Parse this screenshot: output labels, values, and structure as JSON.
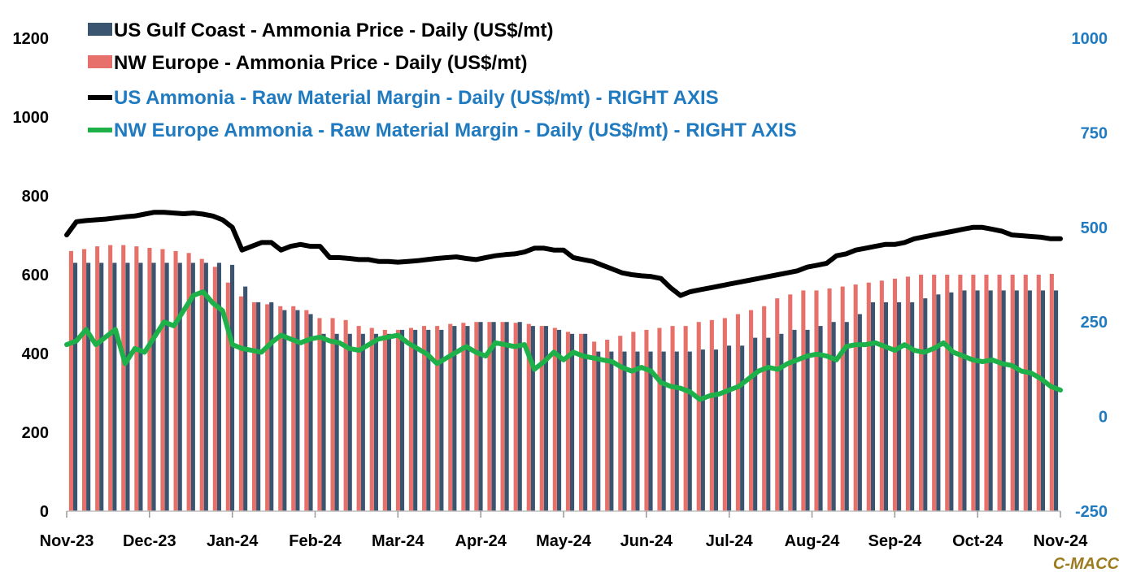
{
  "colors": {
    "us_bar": "#3B5570",
    "eu_bar": "#E8706A",
    "us_margin": "#000000",
    "eu_margin": "#1EB14A",
    "right_axis": "#1F7AC0",
    "watermark": "#9C7A1E"
  },
  "chart_data": {
    "type": "bar",
    "title": "",
    "x_tick_labels": [
      "Nov-23",
      "Dec-23",
      "Jan-24",
      "Feb-24",
      "Mar-24",
      "Apr-24",
      "May-24",
      "Jun-24",
      "Jul-24",
      "Aug-24",
      "Sep-24",
      "Oct-24",
      "Nov-24"
    ],
    "left_axis": {
      "ylim": [
        0,
        1200
      ],
      "ticks": [
        "0",
        "200",
        "400",
        "600",
        "800",
        "1000",
        "1200"
      ]
    },
    "right_axis": {
      "ylim": [
        -250,
        1000
      ],
      "ticks": [
        "-250",
        "0",
        "250",
        "500",
        "750",
        "1000"
      ]
    },
    "grid": false,
    "legend_position": "top-left",
    "weekly_dates": [
      "2023-11-01",
      "2023-11-08",
      "2023-11-15",
      "2023-11-22",
      "2023-11-29",
      "2023-12-06",
      "2023-12-13",
      "2023-12-20",
      "2023-12-27",
      "2024-01-03",
      "2024-01-10",
      "2024-01-17",
      "2024-01-24",
      "2024-01-31",
      "2024-02-07",
      "2024-02-14",
      "2024-02-21",
      "2024-02-28",
      "2024-03-06",
      "2024-03-13",
      "2024-03-20",
      "2024-03-27",
      "2024-04-03",
      "2024-04-10",
      "2024-04-17",
      "2024-04-24",
      "2024-05-01",
      "2024-05-08",
      "2024-05-15",
      "2024-05-22",
      "2024-05-29",
      "2024-06-05",
      "2024-06-12",
      "2024-06-19",
      "2024-06-26",
      "2024-07-03",
      "2024-07-10",
      "2024-07-17",
      "2024-07-24",
      "2024-07-31",
      "2024-08-07",
      "2024-08-14",
      "2024-08-21",
      "2024-08-28",
      "2024-09-04",
      "2024-09-11",
      "2024-09-18",
      "2024-09-25",
      "2024-10-02",
      "2024-10-09",
      "2024-10-16",
      "2024-10-23",
      "2024-10-30",
      "2024-11-06",
      "2024-11-13",
      "2024-11-20",
      "2024-11-27",
      "2024-11-30"
    ],
    "series": [
      {
        "name": "US Gulf Coast - Ammonia Price - Daily (US$/mt)",
        "axis": "left",
        "values": [
          630,
          630,
          630,
          630,
          630,
          630,
          630,
          630,
          630,
          630,
          630,
          630,
          625,
          570,
          530,
          530,
          510,
          510,
          500,
          450,
          450,
          450,
          450,
          450,
          450,
          460,
          460,
          460,
          460,
          470,
          470,
          480,
          480,
          480,
          480,
          470,
          470,
          460,
          450,
          450,
          405,
          405,
          405,
          405,
          405,
          405,
          405,
          405,
          410,
          410,
          420,
          420,
          440,
          440,
          450,
          460,
          460,
          470,
          480,
          480,
          500,
          530,
          530,
          530,
          530,
          540,
          550,
          555,
          560,
          560,
          560,
          560,
          560,
          560,
          560,
          560
        ]
      },
      {
        "name": "NW Europe - Ammonia Price - Daily (US$/mt)",
        "axis": "left",
        "values": [
          660,
          665,
          672,
          675,
          675,
          672,
          668,
          665,
          660,
          655,
          640,
          620,
          580,
          545,
          530,
          525,
          520,
          520,
          510,
          490,
          490,
          485,
          470,
          465,
          460,
          460,
          465,
          470,
          470,
          475,
          478,
          480,
          480,
          480,
          478,
          475,
          470,
          465,
          455,
          450,
          430,
          435,
          445,
          455,
          460,
          465,
          470,
          470,
          480,
          485,
          490,
          500,
          510,
          520,
          540,
          550,
          560,
          560,
          565,
          570,
          575,
          580,
          585,
          590,
          595,
          600,
          600,
          600,
          600,
          600,
          600,
          600,
          600,
          600,
          600,
          602
        ]
      },
      {
        "name": "US Ammonia - Raw Material Margin - Daily (US$/mt) - RIGHT AXIS",
        "axis": "right",
        "values": [
          480,
          515,
          518,
          520,
          522,
          525,
          528,
          530,
          535,
          540,
          540,
          538,
          536,
          538,
          535,
          530,
          520,
          500,
          440,
          450,
          460,
          460,
          440,
          450,
          455,
          450,
          450,
          420,
          420,
          418,
          415,
          415,
          410,
          410,
          408,
          410,
          412,
          415,
          418,
          420,
          422,
          418,
          415,
          420,
          425,
          428,
          430,
          435,
          445,
          445,
          440,
          440,
          420,
          415,
          410,
          400,
          390,
          380,
          375,
          372,
          370,
          365,
          340,
          320,
          330,
          335,
          340,
          345,
          350,
          355,
          360,
          365,
          370,
          375,
          380,
          385,
          395,
          400,
          405,
          425,
          430,
          440,
          445,
          450,
          455,
          455,
          460,
          470,
          475,
          480,
          485,
          490,
          495,
          500,
          500,
          495,
          490,
          480,
          478,
          476,
          474,
          470,
          470
        ]
      },
      {
        "name": "NW Europe Ammonia - Raw Material Margin - Daily (US$/mt) - RIGHT AXIS",
        "axis": "right",
        "values": [
          190,
          200,
          230,
          190,
          210,
          230,
          140,
          180,
          170,
          210,
          250,
          240,
          280,
          320,
          330,
          300,
          280,
          190,
          180,
          175,
          170,
          195,
          215,
          205,
          195,
          205,
          210,
          200,
          195,
          180,
          175,
          190,
          205,
          210,
          215,
          195,
          180,
          165,
          140,
          155,
          170,
          185,
          170,
          160,
          195,
          190,
          185,
          190,
          125,
          145,
          170,
          150,
          170,
          160,
          155,
          150,
          145,
          130,
          120,
          130,
          120,
          90,
          80,
          75,
          65,
          45,
          55,
          60,
          70,
          80,
          100,
          120,
          130,
          125,
          140,
          150,
          160,
          165,
          160,
          150,
          185,
          190,
          190,
          195,
          185,
          175,
          190,
          175,
          170,
          180,
          195,
          170,
          160,
          150,
          145,
          150,
          140,
          135,
          120,
          115,
          100,
          80,
          70
        ]
      }
    ]
  },
  "legend": {
    "items": [
      {
        "label": "US Gulf Coast - Ammonia Price - Daily (US$/mt)",
        "text_color": "#000000"
      },
      {
        "label": "NW Europe - Ammonia Price - Daily (US$/mt)",
        "text_color": "#000000"
      },
      {
        "label": "US Ammonia - Raw Material Margin - Daily (US$/mt) - RIGHT AXIS",
        "text_color": "#1F7AC0"
      },
      {
        "label": "NW Europe Ammonia - Raw Material Margin - Daily (US$/mt) - RIGHT AXIS",
        "text_color": "#1F7AC0"
      }
    ]
  },
  "watermark": {
    "text": "C-MACC"
  }
}
